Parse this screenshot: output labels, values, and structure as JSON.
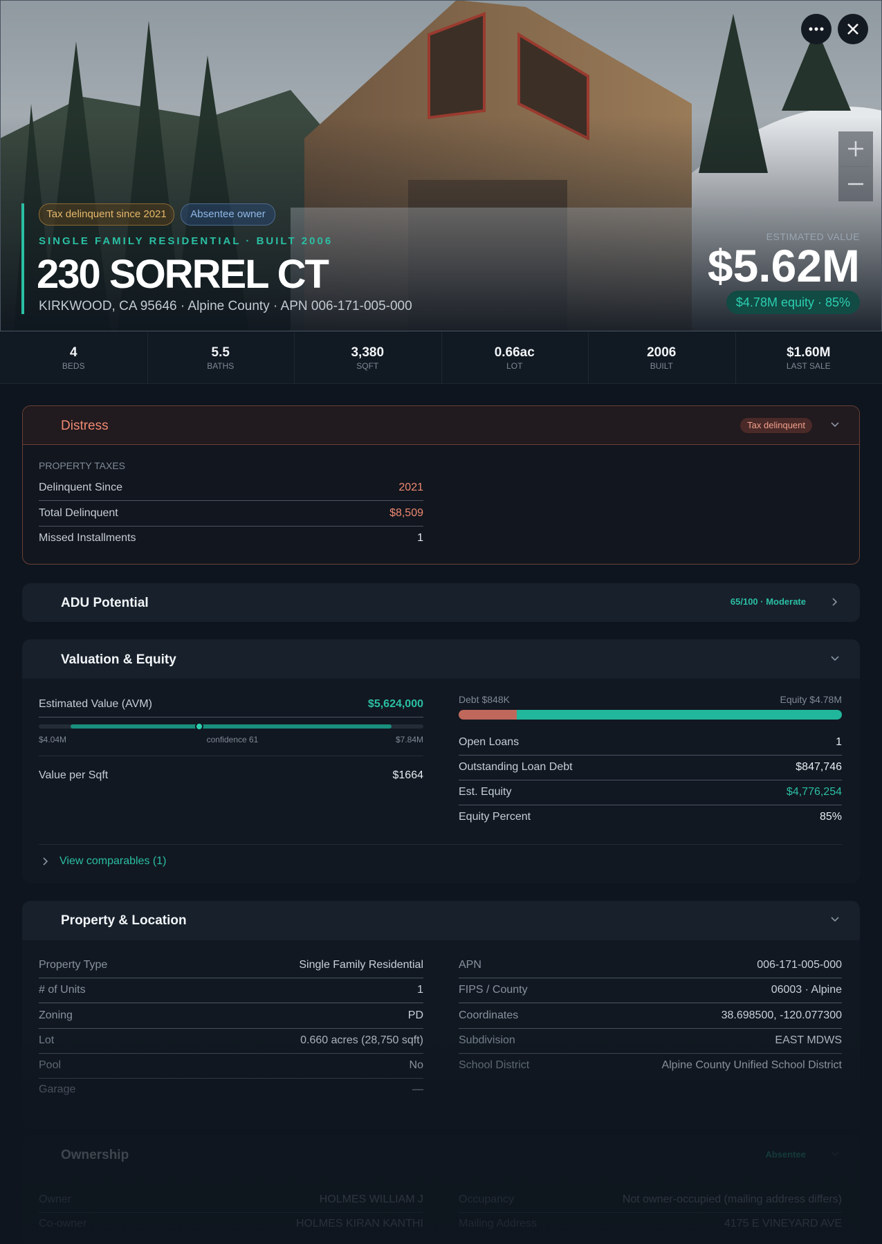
{
  "hero": {
    "badges": [
      "Tax delinquent since 2021",
      "Absentee owner"
    ],
    "subtitle": "SINGLE FAMILY RESIDENTIAL · BUILT 2006",
    "title": "230 SORREL CT",
    "address": "KIRKWOOD, CA 95646 · Alpine County · APN 006-171-005-000",
    "estimate_label": "ESTIMATED VALUE",
    "estimate": "$5.62M",
    "equity": "$4.78M equity · 85%"
  },
  "stats": [
    {
      "value": "4",
      "label": "BEDS"
    },
    {
      "value": "5.5",
      "label": "BATHS"
    },
    {
      "value": "3,380",
      "label": "SQFT"
    },
    {
      "value": "0.66ac",
      "label": "LOT"
    },
    {
      "value": "2006",
      "label": "BUILT"
    },
    {
      "value": "$1.60M",
      "label": "LAST SALE"
    }
  ],
  "distress": {
    "title": "Distress",
    "badge": "Tax delinquent",
    "group": "PROPERTY TAXES",
    "rows": [
      [
        "Delinquent Since",
        "2021"
      ],
      [
        "Total Delinquent",
        "$8,509"
      ],
      [
        "Missed Installments",
        "1"
      ]
    ]
  },
  "adu": {
    "title": "ADU Potential",
    "badge": "65/100 · Moderate"
  },
  "valuation": {
    "title": "Valuation & Equity",
    "avm": {
      "label": "Estimated Value (AVM)",
      "value": "$5,624,000",
      "low": "$4.04M",
      "confidence": "confidence 61",
      "high": "$7.84M"
    },
    "per_sqft": [
      "Value per Sqft",
      "$1664"
    ],
    "debt_label": "Debt $848K",
    "equity_label": "Equity $4.78M",
    "rows": [
      [
        "Open Loans",
        "1"
      ],
      [
        "Outstanding Loan Debt",
        "$847,746"
      ],
      [
        "Est. Equity",
        "$4,776,254"
      ],
      [
        "Equity Percent",
        "85%"
      ]
    ],
    "link": "View comparables (1)"
  },
  "property": {
    "title": "Property & Location",
    "left": [
      [
        "Property Type",
        "Single Family Residential"
      ],
      [
        "# of Units",
        "1"
      ],
      [
        "Zoning",
        "PD"
      ],
      [
        "Lot",
        "0.660 acres (28,750 sqft)"
      ],
      [
        "Pool",
        "No"
      ],
      [
        "Garage",
        "—"
      ]
    ],
    "right": [
      [
        "APN",
        "006-171-005-000"
      ],
      [
        "FIPS / County",
        "06003 · Alpine"
      ],
      [
        "Coordinates",
        "38.698500, -120.077300"
      ],
      [
        "Subdivision",
        "EAST MDWS"
      ],
      [
        "School District",
        "Alpine County Unified School District"
      ]
    ]
  },
  "ownership": {
    "title": "Ownership",
    "badge": "Absentee",
    "left": [
      [
        "Owner",
        "HOLMES WILLIAM J"
      ],
      [
        "Co-owner",
        "HOLMES KIRAN KANTHI"
      ]
    ],
    "right": [
      [
        "Occupancy",
        "Not owner-occupied (mailing address differs)"
      ],
      [
        "Mailing Address",
        "4175 E VINEYARD AVE"
      ]
    ]
  }
}
